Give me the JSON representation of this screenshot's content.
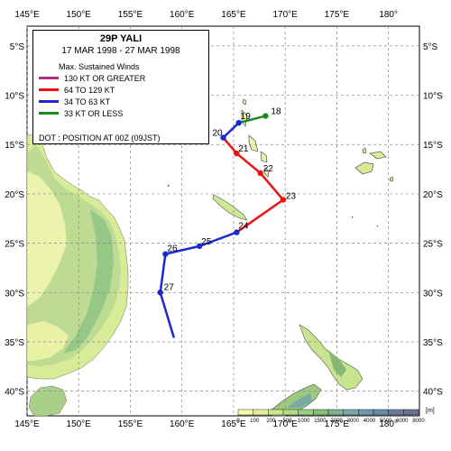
{
  "storm": {
    "name": "29P YALI",
    "dates": "17 MAR 1998 - 27 MAR 1998"
  },
  "legend": {
    "header": "Max. Sustained Winds",
    "items": [
      {
        "label": "130 KT OR GREATER",
        "color": "#b0307a"
      },
      {
        "label": "64 TO 129 KT",
        "color": "#ee1111"
      },
      {
        "label": "34 TO 63 KT",
        "color": "#1a2acc"
      },
      {
        "label": "33 KT OR LESS",
        "color": "#1a8a1a"
      }
    ],
    "dot_note": "DOT : POSITION AT 00Z (09JST)"
  },
  "axes": {
    "lon_labels": [
      "145°E",
      "150°E",
      "155°E",
      "160°E",
      "165°E",
      "170°E",
      "175°E",
      "180°"
    ],
    "lat_labels": [
      "5°S",
      "10°S",
      "15°S",
      "20°S",
      "25°S",
      "30°S",
      "35°S",
      "40°S"
    ],
    "lon_range": [
      145,
      183
    ],
    "lat_range": [
      -3,
      -42.5
    ]
  },
  "track": {
    "points": [
      {
        "day": "18",
        "lon": 168.1,
        "lat": -12.1,
        "intensity": "33 KT OR LESS"
      },
      {
        "day": "19",
        "lon": 165.5,
        "lat": -12.8,
        "intensity": "34 TO 63 KT"
      },
      {
        "day": "20",
        "lon": 164.0,
        "lat": -14.3,
        "intensity": "34 TO 63 KT"
      },
      {
        "day": "21",
        "lon": 165.3,
        "lat": -15.9,
        "intensity": "64 TO 129 KT"
      },
      {
        "day": "22",
        "lon": 167.6,
        "lat": -17.9,
        "intensity": "64 TO 129 KT"
      },
      {
        "day": "23",
        "lon": 169.8,
        "lat": -20.6,
        "intensity": "64 TO 129 KT"
      },
      {
        "day": "24",
        "lon": 165.3,
        "lat": -23.9,
        "intensity": "34 TO 63 KT"
      },
      {
        "day": "25",
        "lon": 161.7,
        "lat": -25.3,
        "intensity": "34 TO 63 KT"
      },
      {
        "day": "26",
        "lon": 158.4,
        "lat": -26.1,
        "intensity": "34 TO 63 KT"
      },
      {
        "day": "27",
        "lon": 157.9,
        "lat": -30.0,
        "intensity": "34 TO 63 KT"
      }
    ],
    "end": {
      "lon": 159.2,
      "lat": -34.5
    }
  },
  "elevation_scale": {
    "unit": "[m]",
    "ticks": [
      "0",
      "100",
      "200",
      "500",
      "1000",
      "1500",
      "2000",
      "3000",
      "4000",
      "5000",
      "6000",
      "8000"
    ],
    "colors": [
      "#f4f8a8",
      "#e4f0a0",
      "#cce890",
      "#b4dc88",
      "#9ccf80",
      "#84c278",
      "#7ab490",
      "#78a8a8",
      "#6f9ab0",
      "#6b8ca8",
      "#6a7e9c",
      "#6a7090"
    ]
  }
}
